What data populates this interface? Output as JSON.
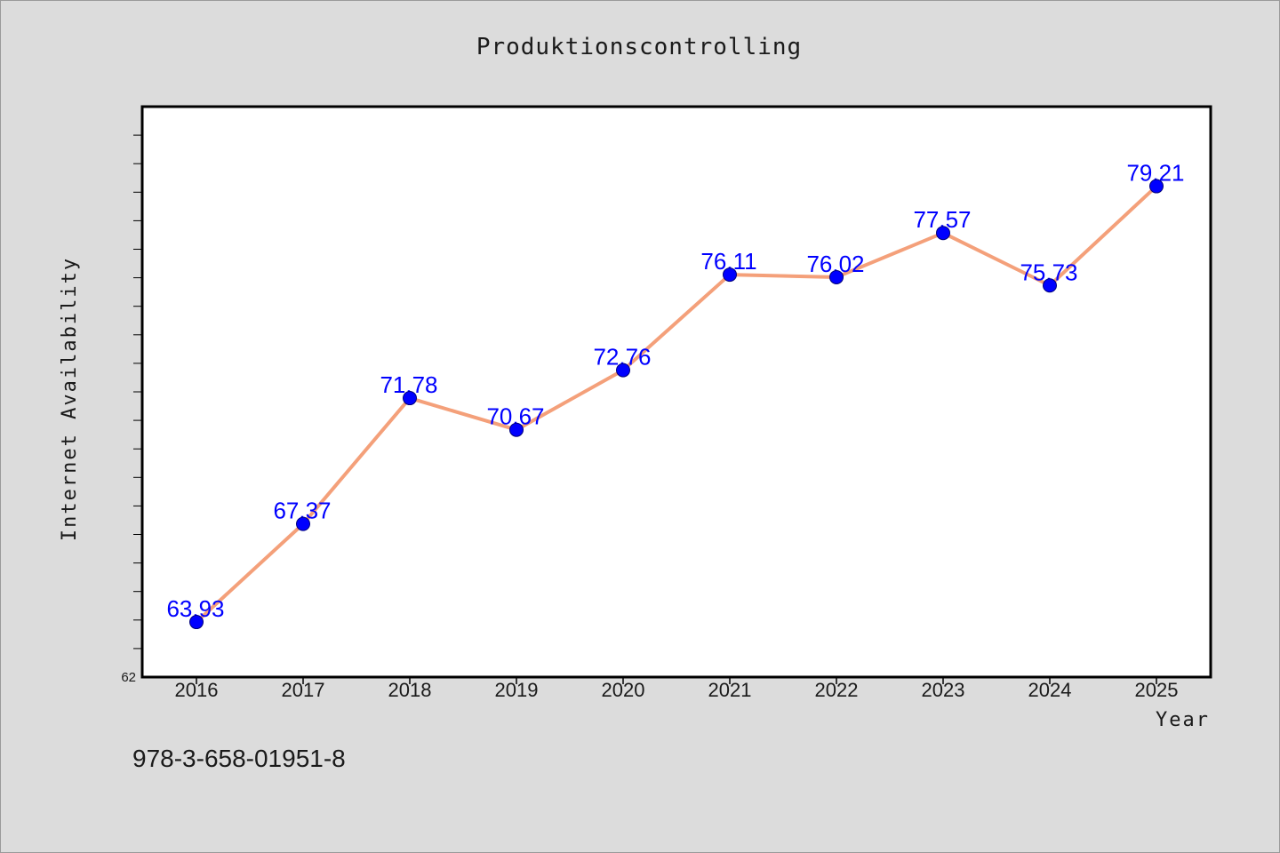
{
  "chart_data": {
    "type": "line",
    "title": "Produktionscontrolling",
    "xlabel": "Year",
    "ylabel": "Internet Availability",
    "categories": [
      "2016",
      "2017",
      "2018",
      "2019",
      "2020",
      "2021",
      "2022",
      "2023",
      "2024",
      "2025"
    ],
    "series": [
      {
        "values": [
          63.93,
          67.37,
          71.78,
          70.67,
          72.76,
          76.11,
          76.02,
          77.57,
          75.73,
          79.21
        ],
        "data_labels": [
          "63.93",
          "67.37",
          "71.78",
          "70.67",
          "72.76",
          "76.11",
          "76.02",
          "77.57",
          "75.73",
          "79.21"
        ],
        "line_color": "#f4a07a",
        "marker_color": "#0000ff"
      }
    ],
    "ylim": [
      62,
      82
    ],
    "y_tick_labels": [
      "62"
    ],
    "grid": false,
    "legend": "none"
  },
  "footer": {
    "isbn": "978-3-658-01951-8"
  },
  "colors": {
    "background": "#dcdcdc",
    "plot_background": "#ffffff",
    "line": "#f4a07a",
    "marker": "#0000ff",
    "data_label": "#0000ff"
  }
}
